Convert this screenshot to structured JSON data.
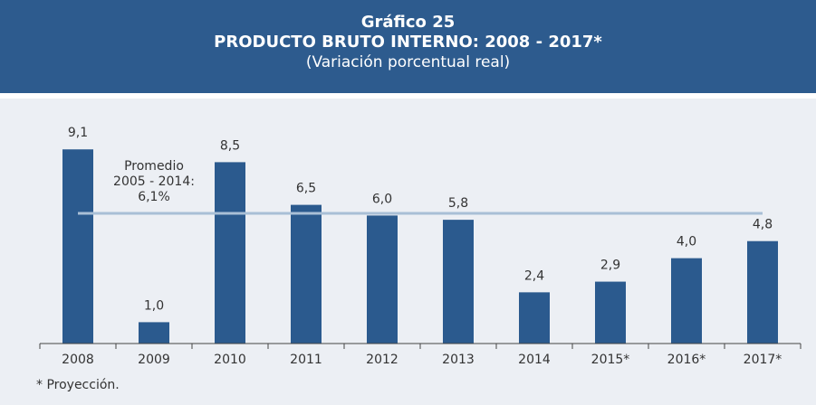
{
  "chart_data": {
    "type": "bar",
    "title": "Gráfico 25",
    "subtitle": "PRODUCTO BRUTO INTERNO: 2008 - 2017*",
    "units": "(Variación porcentual real)",
    "categories": [
      "2008",
      "2009",
      "2010",
      "2011",
      "2012",
      "2013",
      "2014",
      "2015*",
      "2016*",
      "2017*"
    ],
    "values": [
      9.1,
      1.0,
      8.5,
      6.5,
      6.0,
      5.8,
      2.4,
      2.9,
      4.0,
      4.8
    ],
    "value_labels": [
      "9,1",
      "1,0",
      "8,5",
      "6,5",
      "6,0",
      "5,8",
      "2,4",
      "2,9",
      "4,0",
      "4,8"
    ],
    "color": "#2b5a8e",
    "ylim": [
      0,
      10
    ],
    "reference_line": {
      "value": 6.1,
      "color": "#a9bfd6",
      "label": [
        "Promedio",
        "2005 - 2014:",
        "6,1%"
      ]
    },
    "footnote": "* Proyección."
  }
}
